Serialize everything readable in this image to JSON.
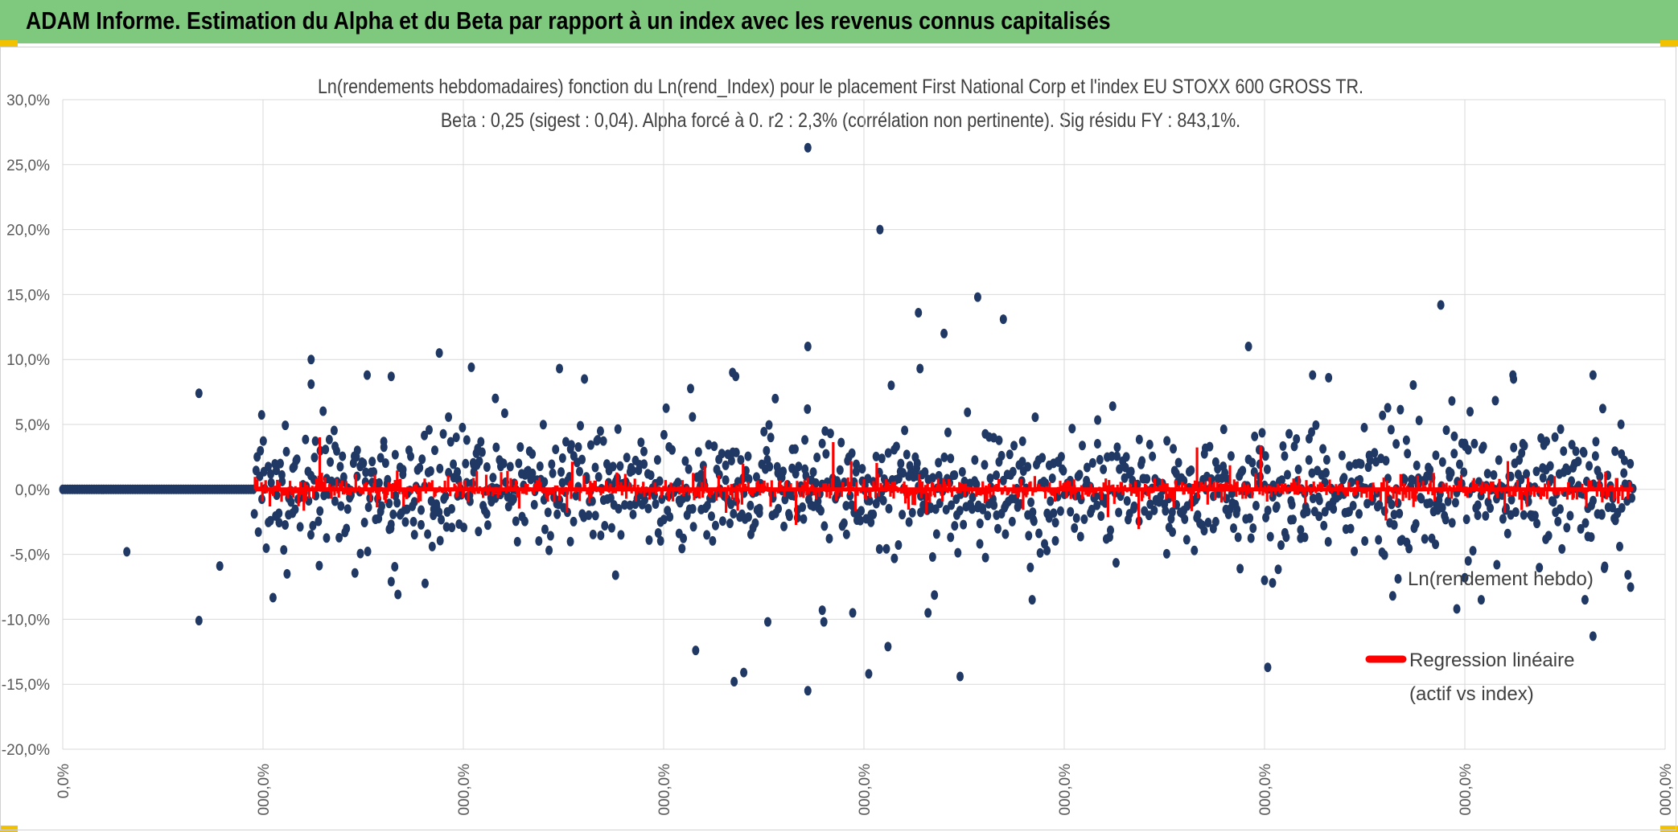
{
  "header": {
    "title": "ADAM Informe. Estimation du Alpha et du Beta par rapport à un index avec les revenus connus capitalisés"
  },
  "colors": {
    "banner": "#7fc97f",
    "scatter": "#203864",
    "regression": "#ff0000",
    "grid": "#d9d9d9",
    "corner": "#f2c200"
  },
  "chart_data": {
    "type": "scatter",
    "title": "Ln(rendements hebdomadaires) fonction du Ln(rend_Index) pour le placement First National Corp et l'index EU STOXX 600 GROSS TR.",
    "subtitle": "Beta : 0,25 (sigest : 0,04). Alpha forcé à 0. r2 : 2,3% (corrélation non pertinente). Sig résidu FY : 843,1%.",
    "xlabel": "",
    "ylabel": "",
    "ylim": [
      -0.2,
      0.3
    ],
    "y_ticks": [
      "30,0%",
      "25,0%",
      "20,0%",
      "15,0%",
      "10,0%",
      "5,0%",
      "0,0%",
      "-5,0%",
      "-10,0%",
      "-15,0%",
      "-20,0%"
    ],
    "x_ticks": [
      "0,0%",
      "000,0%",
      "000,0%",
      "000,0%",
      "000,0%",
      "000,0%",
      "000,0%",
      "000,0%",
      "000,0%"
    ],
    "grid": true,
    "legend_position": "right",
    "series": [
      {
        "name": "Ln(rendement hebdo)",
        "kind": "scatter",
        "flat_start_x": [
          0,
          0.12
        ],
        "flat_value": 0.0,
        "cloud_x_range": [
          0.12,
          0.98
        ],
        "cloud_spread_sd": 0.022,
        "outliers": [
          [
            0.465,
            0.263
          ],
          [
            0.51,
            0.2
          ],
          [
            0.571,
            0.148
          ],
          [
            0.587,
            0.131
          ],
          [
            0.534,
            0.136
          ],
          [
            0.86,
            0.142
          ],
          [
            0.155,
            0.1
          ],
          [
            0.235,
            0.105
          ],
          [
            0.74,
            0.11
          ],
          [
            0.465,
            0.11
          ],
          [
            0.255,
            0.094
          ],
          [
            0.19,
            0.088
          ],
          [
            0.205,
            0.087
          ],
          [
            0.31,
            0.093
          ],
          [
            0.535,
            0.093
          ],
          [
            0.55,
            0.12
          ],
          [
            0.78,
            0.088
          ],
          [
            0.955,
            0.088
          ],
          [
            0.905,
            0.088
          ],
          [
            0.79,
            0.086
          ],
          [
            0.418,
            0.09
          ],
          [
            0.42,
            0.087
          ],
          [
            0.085,
            0.074
          ],
          [
            0.155,
            0.081
          ],
          [
            0.27,
            0.07
          ],
          [
            0.465,
            -0.155
          ],
          [
            0.419,
            -0.148
          ],
          [
            0.425,
            -0.141
          ],
          [
            0.56,
            -0.144
          ],
          [
            0.503,
            -0.142
          ],
          [
            0.515,
            -0.121
          ],
          [
            0.395,
            -0.124
          ],
          [
            0.752,
            -0.137
          ],
          [
            0.955,
            -0.113
          ],
          [
            0.085,
            -0.101
          ],
          [
            0.44,
            -0.102
          ],
          [
            0.474,
            -0.093
          ],
          [
            0.475,
            -0.102
          ],
          [
            0.54,
            -0.095
          ],
          [
            0.493,
            -0.095
          ],
          [
            0.605,
            -0.085
          ],
          [
            0.83,
            -0.082
          ],
          [
            0.87,
            -0.092
          ],
          [
            0.95,
            -0.085
          ],
          [
            0.14,
            -0.065
          ],
          [
            0.04,
            -0.048
          ],
          [
            0.098,
            -0.059
          ],
          [
            0.205,
            -0.071
          ],
          [
            0.345,
            -0.066
          ],
          [
            0.75,
            -0.07
          ],
          [
            0.755,
            -0.072
          ],
          [
            0.875,
            -0.068
          ],
          [
            0.895,
            -0.058
          ]
        ]
      },
      {
        "name": "Regression linéaire\n(actif vs index)",
        "kind": "line",
        "beta": 0.25
      }
    ],
    "legend": [
      {
        "label": "Ln(rendement hebdo)",
        "color": "#203864"
      },
      {
        "label": "Regression linéaire",
        "label2": "(actif vs index)",
        "color": "#ff0000"
      }
    ]
  }
}
